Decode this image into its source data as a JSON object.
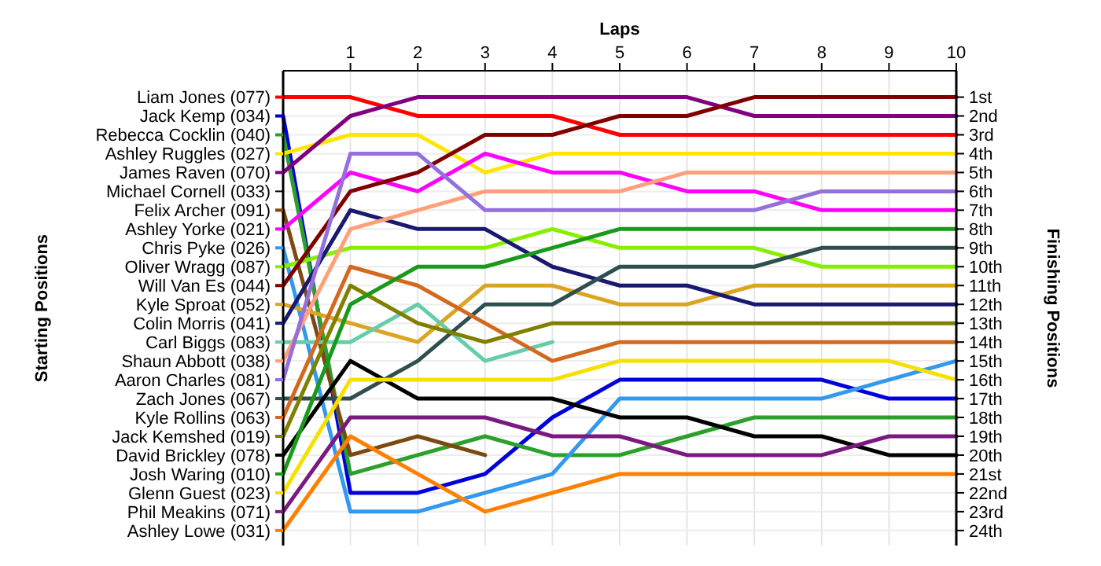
{
  "chart_data": {
    "type": "line",
    "xlabel": "Laps",
    "legend_title": "Starting Positions",
    "ylabel": "Finishing Positions",
    "xlim": [
      0,
      10
    ],
    "xticks": [
      1,
      2,
      3,
      4,
      5,
      6,
      7,
      8,
      9,
      10
    ],
    "ylim": [
      24.8,
      -0.4
    ],
    "yticks": [
      {
        "value": 1,
        "label": "1st"
      },
      {
        "value": 2,
        "label": "2nd"
      },
      {
        "value": 3,
        "label": "3rd"
      },
      {
        "value": 4,
        "label": "4th"
      },
      {
        "value": 5,
        "label": "5th"
      },
      {
        "value": 6,
        "label": "6th"
      },
      {
        "value": 7,
        "label": "7th"
      },
      {
        "value": 8,
        "label": "8th"
      },
      {
        "value": 9,
        "label": "9th"
      },
      {
        "value": 10,
        "label": "10th"
      },
      {
        "value": 11,
        "label": "11th"
      },
      {
        "value": 12,
        "label": "12th"
      },
      {
        "value": 13,
        "label": "13th"
      },
      {
        "value": 14,
        "label": "14th"
      },
      {
        "value": 15,
        "label": "15th"
      },
      {
        "value": 16,
        "label": "16th"
      },
      {
        "value": 17,
        "label": "17th"
      },
      {
        "value": 18,
        "label": "18th"
      },
      {
        "value": 19,
        "label": "19th"
      },
      {
        "value": 20,
        "label": "20th"
      },
      {
        "value": 21,
        "label": "21st"
      },
      {
        "value": 22,
        "label": "22nd"
      },
      {
        "value": 23,
        "label": "23rd"
      },
      {
        "value": 24,
        "label": "24th"
      }
    ],
    "x": [
      0,
      1,
      2,
      3,
      4,
      5,
      6,
      7,
      8,
      9,
      10
    ],
    "grid": true,
    "marker": "none",
    "line_style": "solid",
    "legend": "left",
    "annotations": [
      "Michael Cornell (033)"
    ],
    "series": [
      {
        "name": "Liam Jones (077)",
        "color": "#ff0000",
        "values": [
          1,
          1,
          2,
          2,
          2,
          3,
          3,
          3,
          3,
          3,
          3
        ]
      },
      {
        "name": "Jack Kemp (034)",
        "color": "#0000dd",
        "values": [
          2,
          22,
          22,
          21,
          18,
          16,
          16,
          16,
          16,
          17,
          17
        ]
      },
      {
        "name": "Rebecca Cocklin (040)",
        "color": "#2ca02c",
        "values": [
          3,
          21,
          20,
          19,
          20,
          20,
          19,
          18,
          18,
          18,
          18
        ]
      },
      {
        "name": "Ashley Ruggles (027)",
        "color": "#ffe600",
        "values": [
          4,
          3,
          3,
          5,
          4,
          4,
          4,
          4,
          4,
          4,
          4
        ]
      },
      {
        "name": "James Raven (070)",
        "color": "#800080",
        "values": [
          5,
          2,
          1,
          1,
          1,
          1,
          1,
          2,
          2,
          2,
          2
        ]
      },
      {
        "name": "Felix Archer (091)",
        "color": "#7b4a12",
        "values": [
          7,
          20,
          19,
          20,
          null,
          null,
          null,
          null,
          null,
          null,
          null
        ]
      },
      {
        "name": "Ashley Yorke (021)",
        "color": "#ff00ff",
        "values": [
          8,
          5,
          6,
          4,
          5,
          5,
          6,
          6,
          7,
          7,
          7
        ]
      },
      {
        "name": "Chris Pyke (026)",
        "color": "#3399ee",
        "values": [
          9,
          23,
          23,
          22,
          21,
          17,
          17,
          17,
          17,
          16,
          15
        ]
      },
      {
        "name": "Oliver Wragg (087)",
        "color": "#88ee00",
        "values": [
          10,
          9,
          9,
          9,
          8,
          9,
          9,
          9,
          10,
          10,
          10
        ]
      },
      {
        "name": "Will Van Es (044)",
        "color": "#800000",
        "values": [
          11,
          6,
          5,
          3,
          3,
          2,
          2,
          1,
          1,
          1,
          1
        ]
      },
      {
        "name": "Kyle Sproat (052)",
        "color": "#daa520",
        "values": [
          12,
          13,
          14,
          11,
          11,
          12,
          12,
          11,
          11,
          11,
          11
        ]
      },
      {
        "name": "Colin Morris (041)",
        "color": "#191970",
        "values": [
          13,
          7,
          8,
          8,
          10,
          11,
          11,
          12,
          12,
          12,
          12
        ]
      },
      {
        "name": "Carl Biggs (083)",
        "color": "#66cdaa",
        "values": [
          14,
          14,
          12,
          15,
          14,
          null,
          null,
          null,
          null,
          null,
          null
        ]
      },
      {
        "name": "Shaun Abbott (038)",
        "color": "#ffa07a",
        "values": [
          15,
          8,
          7,
          6,
          6,
          6,
          5,
          5,
          5,
          5,
          5
        ]
      },
      {
        "name": "Aaron Charles (081)",
        "color": "#9370db",
        "values": [
          16,
          4,
          4,
          7,
          7,
          7,
          7,
          7,
          6,
          6,
          6
        ]
      },
      {
        "name": "Zach Jones (067)",
        "color": "#2f4f4f",
        "values": [
          17,
          17,
          15,
          12,
          12,
          10,
          10,
          10,
          9,
          9,
          9
        ]
      },
      {
        "name": "Kyle Rollins (063)",
        "color": "#d2691e",
        "values": [
          18,
          10,
          11,
          13,
          15,
          14,
          14,
          14,
          14,
          14,
          14
        ]
      },
      {
        "name": "Jack Kemshed (019)",
        "color": "#808000",
        "values": [
          19,
          11,
          13,
          14,
          13,
          13,
          13,
          13,
          13,
          13,
          13
        ]
      },
      {
        "name": "David Brickley (078)",
        "color": "#000000",
        "values": [
          20,
          15,
          17,
          17,
          17,
          18,
          18,
          19,
          19,
          20,
          20
        ]
      },
      {
        "name": "Josh Waring (010)",
        "color": "#1a9a1a",
        "values": [
          21,
          12,
          10,
          10,
          9,
          8,
          8,
          8,
          8,
          8,
          8
        ]
      },
      {
        "name": "Glenn Guest (023)",
        "color": "#f5e000",
        "values": [
          22,
          16,
          16,
          16,
          16,
          15,
          15,
          15,
          15,
          15,
          16
        ]
      },
      {
        "name": "Phil Meakins (071)",
        "color": "#7a1a80",
        "values": [
          23,
          18,
          18,
          18,
          19,
          19,
          20,
          20,
          20,
          19,
          19
        ]
      },
      {
        "name": "Ashley Lowe (031)",
        "color": "#ff8000",
        "values": [
          24,
          19,
          21,
          23,
          22,
          21,
          21,
          21,
          21,
          21,
          21
        ]
      }
    ]
  }
}
